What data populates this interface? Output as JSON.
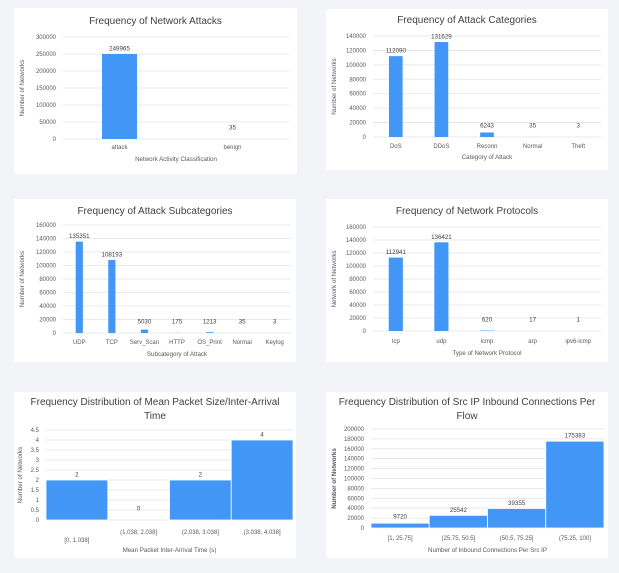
{
  "colors": {
    "bar": "#4296f5",
    "grid": "#e3e3e3",
    "background": "#f3f4f8"
  },
  "chart_data": [
    {
      "type": "bar",
      "title": [
        "Frequency of Network Attacks"
      ],
      "xlabel": "Network Activity Classification",
      "ylabel": "Number of Networks",
      "categories": [
        "attack",
        "benign"
      ],
      "values": [
        249965,
        35
      ],
      "data_labels": [
        "249965",
        "35"
      ],
      "ylim": [
        0,
        300000
      ],
      "yticks": [
        "0",
        "50000",
        "100000",
        "150000",
        "200000",
        "250000",
        "300000"
      ],
      "grid": true,
      "legend": "none"
    },
    {
      "type": "bar",
      "title": [
        "Frequency of Attack Categories"
      ],
      "xlabel": "Category of Attack",
      "ylabel": "Number of Networks",
      "categories": [
        "DoS",
        "DDoS",
        "Reconn",
        "Normal",
        "Theft"
      ],
      "values": [
        112090,
        131629,
        6243,
        35,
        3
      ],
      "data_labels": [
        "112090",
        "131629",
        "6243",
        "35",
        "3"
      ],
      "ylim": [
        0,
        140000
      ],
      "yticks": [
        "0",
        "20000",
        "40000",
        "60000",
        "80000",
        "100000",
        "120000",
        "140000"
      ],
      "grid": true,
      "legend": "none"
    },
    {
      "type": "bar",
      "title": [
        "Frequency of Attack Subcategories"
      ],
      "xlabel": "Subcategory of Attack",
      "ylabel": "Number of Networks",
      "categories": [
        "UDP",
        "TCP",
        "Serv_Scan",
        "HTTP",
        "OS_Print",
        "Normal",
        "Keylog"
      ],
      "values": [
        135351,
        108193,
        5030,
        175,
        1213,
        35,
        3
      ],
      "data_labels": [
        "135351",
        "108193",
        "5030",
        "175",
        "1213",
        "35",
        "3"
      ],
      "ylim": [
        0,
        160000
      ],
      "yticks": [
        "0",
        "20000",
        "40000",
        "60000",
        "80000",
        "100000",
        "120000",
        "140000",
        "160000"
      ],
      "grid": true,
      "legend": "none"
    },
    {
      "type": "bar",
      "title": [
        "Frequency of Network Protocols"
      ],
      "xlabel": "Type of Network Protocol",
      "ylabel": "Network of Networks",
      "categories": [
        "tcp",
        "udp",
        "icmp",
        "arp",
        "ipv6-icmp"
      ],
      "values": [
        112941,
        136421,
        620,
        17,
        1
      ],
      "data_labels": [
        "112941",
        "136421",
        "620",
        "17",
        "1"
      ],
      "ylim": [
        0,
        160000
      ],
      "yticks": [
        "0",
        "20000",
        "40000",
        "60000",
        "80000",
        "100000",
        "120000",
        "140000",
        "160000"
      ],
      "grid": true,
      "legend": "none"
    },
    {
      "type": "bar",
      "histogram": true,
      "title": [
        "Frequency Distribution of Mean Packet Size/Inter-Arrival",
        "Time"
      ],
      "xlabel": "Mean Packet Inter-Arrival Time (s)",
      "ylabel": "Number of Networks",
      "categories": [
        "[0, 1.038]",
        "(1.038, 2.038]",
        "(2.038, 3.038]",
        "(3.038, 4.038]"
      ],
      "values": [
        2,
        0,
        2,
        4
      ],
      "data_labels": [
        "2",
        "0",
        "2",
        "4"
      ],
      "ylim": [
        0,
        4.5
      ],
      "yticks": [
        "0",
        "0.5",
        "1",
        "1.5",
        "2",
        "2.5",
        "3",
        "3.5",
        "4",
        "4.5"
      ],
      "grid": true,
      "legend": "none"
    },
    {
      "type": "bar",
      "histogram": true,
      "title": [
        "Frequency Distribution of Src IP Inbound Connections Per",
        "Flow"
      ],
      "xlabel": "Number of Inbound Connections Per Src IP",
      "ylabel": "Number of Networks",
      "categories": [
        "[1, 25.75]",
        "(25.75, 50.5]",
        "(50.5, 75.25]",
        "(75.25, 100]"
      ],
      "values": [
        9720,
        25542,
        39355,
        175383
      ],
      "data_labels": [
        "9720",
        "25542",
        "39355",
        "175383"
      ],
      "ylim": [
        0,
        200000
      ],
      "yticks": [
        "0",
        "20000",
        "40000",
        "60000",
        "80000",
        "100000",
        "120000",
        "140000",
        "160000",
        "180000",
        "200000"
      ],
      "grid": true,
      "legend": "none"
    }
  ]
}
